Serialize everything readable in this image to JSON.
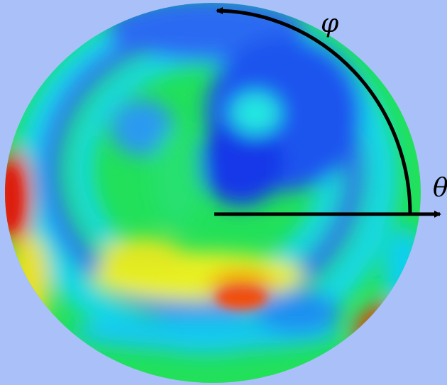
{
  "labels": {
    "phi": "φ",
    "theta": "θ"
  }
}
